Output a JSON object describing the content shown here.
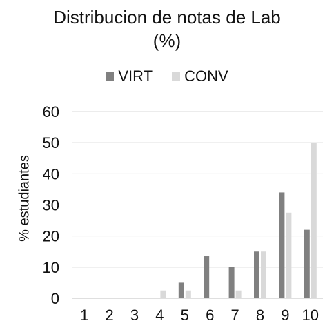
{
  "chart_data": {
    "type": "bar",
    "title": "Distribucion de notas de Lab",
    "subtitle": "(%)",
    "xlabel": "",
    "ylabel": "% estudiantes",
    "categories": [
      "1",
      "2",
      "3",
      "4",
      "5",
      "6",
      "7",
      "8",
      "9",
      "10"
    ],
    "series": [
      {
        "name": "VIRT",
        "color": "#808080",
        "values": [
          0,
          0,
          0,
          0,
          5,
          13.5,
          10,
          15,
          34,
          22
        ]
      },
      {
        "name": "CONV",
        "color": "#d9d9d9",
        "values": [
          0,
          0,
          0,
          2.5,
          2.5,
          0,
          2.5,
          15,
          27.5,
          50
        ]
      }
    ],
    "ylim": [
      0,
      60
    ],
    "yticks": [
      "0",
      "10",
      "20",
      "30",
      "40",
      "50",
      "60"
    ],
    "grid": true,
    "legend": "top"
  }
}
